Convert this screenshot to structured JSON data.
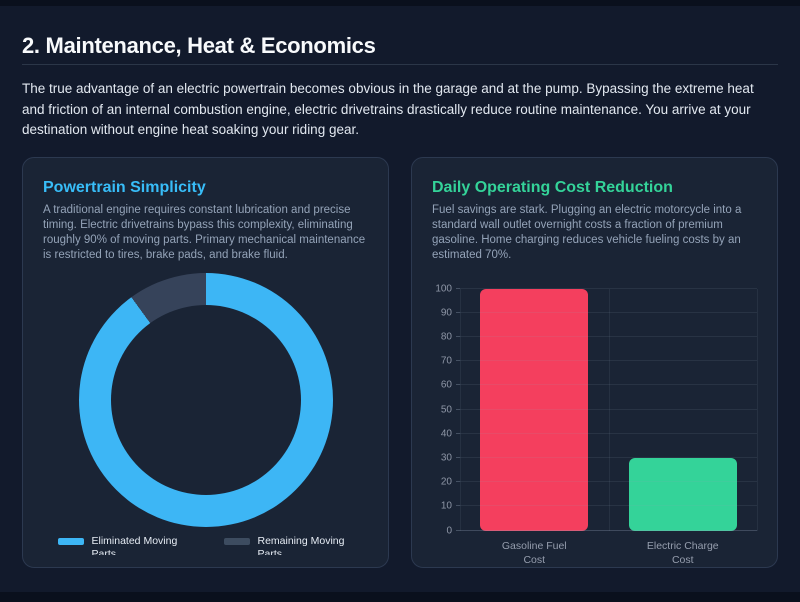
{
  "page": {
    "title": "2. Maintenance, Heat & Economics",
    "intro": "The true advantage of an electric powertrain becomes obvious in the garage and at the pump. Bypassing the extreme heat and friction of an internal combustion engine, electric drivetrains drastically reduce routine maintenance. You arrive at your destination without engine heat soaking your riding gear."
  },
  "cards": {
    "powertrain": {
      "title": "Powertrain Simplicity",
      "title_color": "#38bdf8",
      "description": "A traditional engine requires constant lubrication and precise timing. Electric drivetrains bypass this complexity, eliminating roughly 90% of moving parts. Primary mechanical maintenance is restricted to tires, brake pads, and brake fluid."
    },
    "cost": {
      "title": "Daily Operating Cost Reduction",
      "title_color": "#34d399",
      "description": "Fuel savings are stark. Plugging an electric motorcycle into a standard wall outlet overnight costs a fraction of premium gasoline. Home charging reduces vehicle fueling costs by an estimated 70%."
    }
  },
  "chart_data": [
    {
      "type": "pie",
      "donut": true,
      "labels": [
        "Eliminated Moving Parts",
        "Remaining Moving Parts"
      ],
      "values": [
        90,
        10
      ],
      "colors": [
        "#3db6f5",
        "#36435a"
      ],
      "legend_swatch_colors": [
        "#3db6f5",
        "#3d4c60"
      ],
      "legend_position": "bottom",
      "title": ""
    },
    {
      "type": "bar",
      "categories": [
        "Gasoline Fuel Cost",
        "Electric Charge Cost"
      ],
      "category_lines": [
        [
          "Gasoline Fuel",
          "Cost"
        ],
        [
          "Electric Charge",
          "Cost"
        ]
      ],
      "values": [
        100,
        30
      ],
      "colors": [
        "#f43f5e",
        "#34d399"
      ],
      "ylim": [
        0,
        100
      ],
      "ytick_step": 10,
      "grid": true,
      "legend_position": "none",
      "title": "",
      "xlabel": "",
      "ylabel": ""
    }
  ]
}
